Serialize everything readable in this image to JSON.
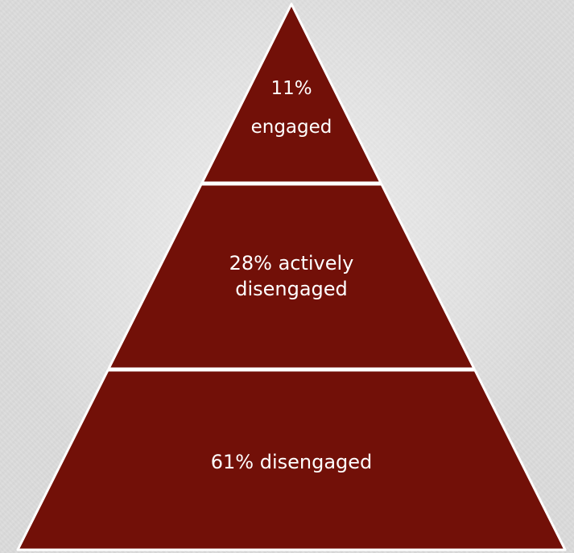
{
  "pyramid": {
    "fill_color": "#721008",
    "divider_color": "#ffffff",
    "tiers": [
      {
        "id": "top",
        "lines": [
          "11%",
          "engaged"
        ]
      },
      {
        "id": "middle",
        "lines": [
          "28% actively",
          "disengaged"
        ]
      },
      {
        "id": "bottom",
        "lines": [
          "61% disengaged"
        ]
      }
    ]
  }
}
